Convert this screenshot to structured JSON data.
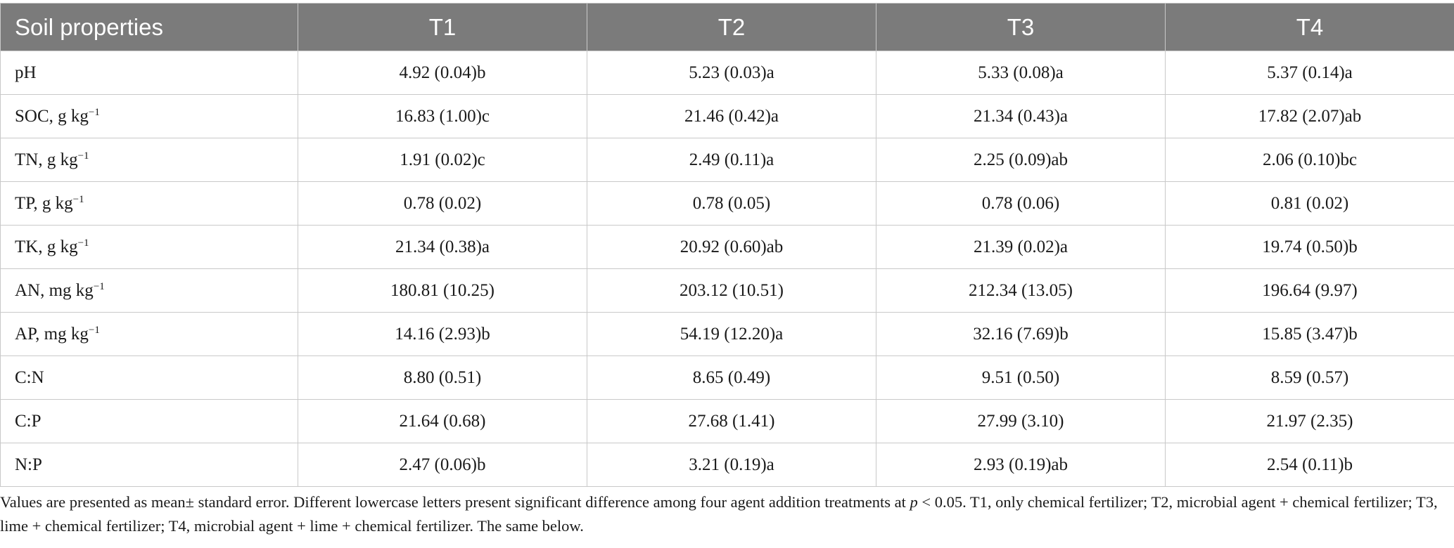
{
  "table": {
    "headers": [
      "Soil properties",
      "T1",
      "T2",
      "T3",
      "T4"
    ],
    "rows": [
      {
        "label": "pH",
        "unit_base": "",
        "unit_exp": "",
        "values": [
          "4.92 (0.04)b",
          "5.23 (0.03)a",
          "5.33 (0.08)a",
          "5.37 (0.14)a"
        ]
      },
      {
        "label": "SOC, g kg",
        "unit_base": "",
        "unit_exp": "−1",
        "values": [
          "16.83 (1.00)c",
          "21.46 (0.42)a",
          "21.34 (0.43)a",
          "17.82 (2.07)ab"
        ]
      },
      {
        "label": "TN, g kg",
        "unit_base": "",
        "unit_exp": "−1",
        "values": [
          "1.91 (0.02)c",
          "2.49 (0.11)a",
          "2.25 (0.09)ab",
          "2.06 (0.10)bc"
        ]
      },
      {
        "label": "TP, g kg",
        "unit_base": "",
        "unit_exp": "−1",
        "values": [
          "0.78 (0.02)",
          "0.78 (0.05)",
          "0.78 (0.06)",
          "0.81 (0.02)"
        ]
      },
      {
        "label": "TK, g kg",
        "unit_base": "",
        "unit_exp": "−1",
        "values": [
          "21.34 (0.38)a",
          "20.92 (0.60)ab",
          "21.39 (0.02)a",
          "19.74 (0.50)b"
        ]
      },
      {
        "label": "AN, mg kg",
        "unit_base": "",
        "unit_exp": "−1",
        "values": [
          "180.81 (10.25)",
          "203.12 (10.51)",
          "212.34 (13.05)",
          "196.64 (9.97)"
        ]
      },
      {
        "label": "AP, mg kg",
        "unit_base": "",
        "unit_exp": "−1",
        "values": [
          "14.16 (2.93)b",
          "54.19 (12.20)a",
          "32.16 (7.69)b",
          "15.85 (3.47)b"
        ]
      },
      {
        "label": "C:N",
        "unit_base": "",
        "unit_exp": "",
        "values": [
          "8.80 (0.51)",
          "8.65 (0.49)",
          "9.51 (0.50)",
          "8.59 (0.57)"
        ]
      },
      {
        "label": "C:P",
        "unit_base": "",
        "unit_exp": "",
        "values": [
          "21.64 (0.68)",
          "27.68 (1.41)",
          "27.99 (3.10)",
          "21.97 (2.35)"
        ]
      },
      {
        "label": "N:P",
        "unit_base": "",
        "unit_exp": "",
        "values": [
          "2.47 (0.06)b",
          "3.21 (0.19)a",
          "2.93 (0.19)ab",
          "2.54 (0.11)b"
        ]
      }
    ]
  },
  "footnote": {
    "part1": "Values are presented as mean± standard error. Different lowercase letters present significant difference among four agent addition treatments at ",
    "italic_p": "p",
    "part2": " < 0.05. T1, only chemical fertilizer; T2, microbial agent + chemical fertilizer; T3, lime + chemical fertilizer; T4, microbial agent + lime + chemical fertilizer. The same below."
  }
}
